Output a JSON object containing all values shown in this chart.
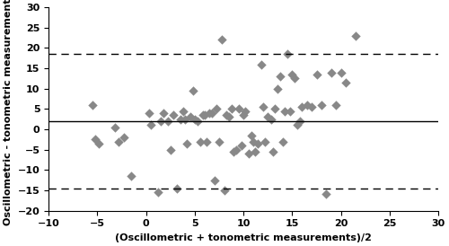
{
  "mean_diff": 2.0,
  "upper_loa": 18.5,
  "lower_loa": -14.5,
  "xlim": [
    -10,
    30
  ],
  "ylim": [
    -20,
    30
  ],
  "xticks": [
    -10,
    -5,
    0,
    5,
    10,
    15,
    20,
    25,
    30
  ],
  "yticks": [
    -20,
    -15,
    -10,
    -5,
    0,
    5,
    10,
    15,
    20,
    25,
    30
  ],
  "xlabel": "(Oscillometric + tonometric measurements)/2",
  "ylabel": "Oscillometric - tonometric measurements",
  "scatter_color": "#888888",
  "line_color": "#000000",
  "scatter_x": [
    -5.5,
    -5.2,
    -4.9,
    -3.2,
    -2.8,
    -2.3,
    -1.5,
    0.3,
    0.5,
    1.2,
    1.5,
    1.8,
    2.2,
    2.5,
    2.8,
    3.2,
    3.5,
    3.8,
    4.0,
    4.2,
    4.5,
    4.8,
    5.0,
    5.3,
    5.6,
    5.8,
    6.0,
    6.2,
    6.5,
    6.8,
    7.0,
    7.2,
    7.5,
    7.8,
    8.0,
    8.2,
    8.5,
    8.8,
    9.0,
    9.2,
    9.5,
    9.8,
    10.0,
    10.2,
    10.5,
    10.8,
    11.0,
    11.2,
    11.5,
    11.8,
    12.0,
    12.2,
    12.5,
    12.8,
    13.0,
    13.2,
    13.5,
    13.8,
    14.0,
    14.2,
    14.5,
    14.8,
    15.0,
    15.2,
    15.5,
    15.8,
    16.0,
    16.5,
    17.0,
    17.5,
    18.0,
    18.5,
    19.0,
    19.5,
    20.0,
    20.5,
    21.5
  ],
  "scatter_y": [
    6.0,
    -2.5,
    -3.5,
    0.5,
    -3.0,
    -2.0,
    -11.5,
    4.0,
    1.0,
    -15.5,
    2.0,
    4.0,
    2.0,
    -5.0,
    3.5,
    -14.5,
    2.5,
    4.5,
    2.5,
    -3.5,
    3.0,
    9.5,
    2.5,
    2.0,
    -3.0,
    3.5,
    3.5,
    -3.0,
    4.0,
    4.0,
    -12.5,
    5.0,
    -3.0,
    22.0,
    -15.0,
    3.5,
    3.0,
    5.0,
    -5.5,
    -5.0,
    5.0,
    -4.0,
    3.5,
    4.5,
    -6.0,
    -1.5,
    -3.0,
    -5.5,
    -3.5,
    16.0,
    5.5,
    -3.0,
    3.0,
    2.5,
    -5.5,
    5.0,
    10.0,
    13.0,
    -3.0,
    4.5,
    18.5,
    4.5,
    13.5,
    12.5,
    1.0,
    2.0,
    5.5,
    6.0,
    5.5,
    13.5,
    6.0,
    -16.0,
    14.0,
    6.0,
    14.0,
    11.5,
    23.0
  ]
}
